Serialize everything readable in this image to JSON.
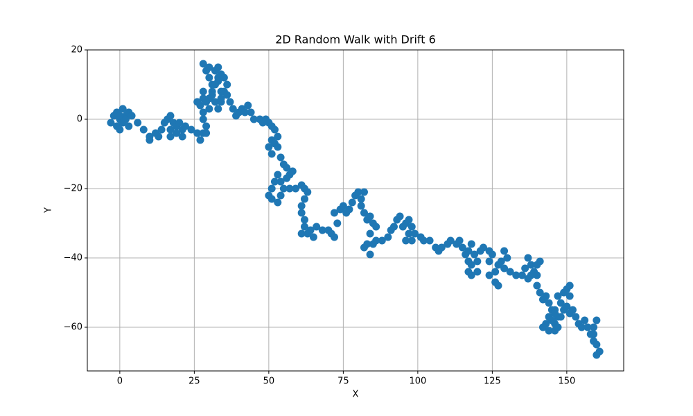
{
  "chart_data": {
    "type": "scatter",
    "title": "2D Random Walk with Drift 6",
    "x_label": "X",
    "y_label": "Y",
    "color": "#1f77b4",
    "grid": true,
    "xlim": [
      -10.9,
      169.1
    ],
    "ylim": [
      -72.6,
      20
    ],
    "xticks": [
      0,
      25,
      50,
      75,
      100,
      125,
      150
    ],
    "yticks": [
      {
        "value": -60,
        "label": "−60"
      },
      {
        "value": -40,
        "label": "−40"
      },
      {
        "value": -20,
        "label": "−20"
      },
      0,
      20
    ],
    "x": [
      0,
      -2,
      -3,
      -1,
      0,
      1,
      2,
      1,
      -1,
      0,
      2,
      3,
      3,
      4,
      6,
      8,
      10,
      10,
      12,
      13,
      14,
      15,
      16,
      17,
      18,
      17,
      17,
      19,
      19,
      20,
      21,
      21,
      22,
      24,
      26,
      27,
      28,
      29,
      29,
      28,
      28,
      27,
      26,
      28,
      28,
      29,
      30,
      30,
      31,
      31,
      30,
      29,
      28,
      30,
      32,
      33,
      32,
      31,
      32,
      33,
      34,
      34,
      33,
      34,
      33,
      35,
      36,
      35,
      34,
      36,
      37,
      38,
      39,
      40,
      41,
      42,
      43,
      44,
      45,
      47,
      48,
      49,
      50,
      51,
      52,
      51,
      50,
      51,
      52,
      53,
      53,
      54,
      55,
      56,
      57,
      58,
      56,
      54,
      53,
      52,
      51,
      50,
      51,
      53,
      54,
      55,
      57,
      59,
      61,
      62,
      63,
      62,
      61,
      61,
      62,
      62,
      61,
      63,
      64,
      65,
      66,
      68,
      70,
      71,
      72,
      73,
      72,
      74,
      75,
      76,
      77,
      78,
      79,
      80,
      81,
      82,
      81,
      82,
      83,
      84,
      85,
      86,
      84,
      83,
      82,
      84,
      85,
      86,
      88,
      90,
      91,
      92,
      93,
      94,
      95,
      96,
      97,
      98,
      97,
      96,
      98,
      99,
      101,
      102,
      104,
      106,
      107,
      108,
      110,
      111,
      113,
      114,
      115,
      116,
      117,
      117,
      118,
      118,
      117,
      118,
      119,
      120,
      120,
      121,
      122,
      124,
      125,
      124,
      124,
      126,
      127,
      126,
      127,
      128,
      129,
      130,
      129,
      131,
      133,
      135,
      136,
      137,
      138,
      138,
      137,
      139,
      140,
      141,
      140,
      140,
      141,
      142,
      143,
      144,
      145,
      144,
      143,
      142,
      144,
      146,
      147,
      146,
      148,
      147,
      146,
      145,
      146,
      147,
      148,
      149,
      149,
      150,
      151,
      151,
      150,
      151,
      152,
      153,
      154,
      155,
      156,
      157,
      158,
      159,
      160,
      159,
      159,
      160,
      161,
      160
    ],
    "values": [
      0,
      1,
      -1,
      -2,
      -3,
      -1,
      1,
      3,
      2,
      1,
      0,
      -2,
      2,
      1,
      -1,
      -3,
      -5,
      -6,
      -4,
      -5,
      -3,
      -1,
      0,
      1,
      -1,
      -3,
      -5,
      -4,
      -2,
      -1,
      -3,
      -5,
      -2,
      -3,
      -4,
      -6,
      -4,
      -2,
      -4,
      0,
      2,
      4,
      5,
      6,
      8,
      5,
      3,
      6,
      8,
      10,
      12,
      14,
      16,
      15,
      14,
      12,
      10,
      7,
      5,
      3,
      5,
      8,
      11,
      13,
      15,
      12,
      10,
      8,
      6,
      7,
      5,
      3,
      1,
      2,
      3,
      2,
      4,
      2,
      0,
      0,
      -1,
      0,
      -1,
      -2,
      -3,
      -6,
      -8,
      -10,
      -7,
      -5,
      -8,
      -11,
      -13,
      -14,
      -16,
      -15,
      -17,
      -18,
      -16,
      -18,
      -20,
      -22,
      -23,
      -24,
      -22,
      -20,
      -20,
      -20,
      -19,
      -20,
      -21,
      -23,
      -25,
      -27,
      -29,
      -31,
      -33,
      -33,
      -32,
      -34,
      -31,
      -32,
      -32,
      -33,
      -34,
      -30,
      -27,
      -26,
      -25,
      -27,
      -26,
      -24,
      -22,
      -21,
      -23,
      -21,
      -25,
      -27,
      -29,
      -28,
      -30,
      -31,
      -33,
      -36,
      -37,
      -39,
      -36,
      -35,
      -35,
      -34,
      -32,
      -31,
      -29,
      -28,
      -31,
      -30,
      -29,
      -31,
      -33,
      -35,
      -35,
      -33,
      -34,
      -35,
      -35,
      -37,
      -38,
      -37,
      -36,
      -35,
      -36,
      -35,
      -37,
      -39,
      -41,
      -44,
      -45,
      -42,
      -38,
      -36,
      -39,
      -41,
      -44,
      -38,
      -37,
      -38,
      -39,
      -41,
      -45,
      -47,
      -48,
      -44,
      -42,
      -41,
      -38,
      -40,
      -43,
      -44,
      -45,
      -45,
      -43,
      -40,
      -42,
      -45,
      -46,
      -44,
      -42,
      -41,
      -45,
      -48,
      -50,
      -52,
      -51,
      -53,
      -55,
      -57,
      -59,
      -60,
      -61,
      -59,
      -57,
      -55,
      -53,
      -51,
      -56,
      -58,
      -61,
      -60,
      -57,
      -55,
      -50,
      -49,
      -48,
      -51,
      -54,
      -56,
      -55,
      -57,
      -59,
      -60,
      -58,
      -60,
      -62,
      -60,
      -58,
      -62,
      -64,
      -65,
      -67,
      -68
    ]
  }
}
